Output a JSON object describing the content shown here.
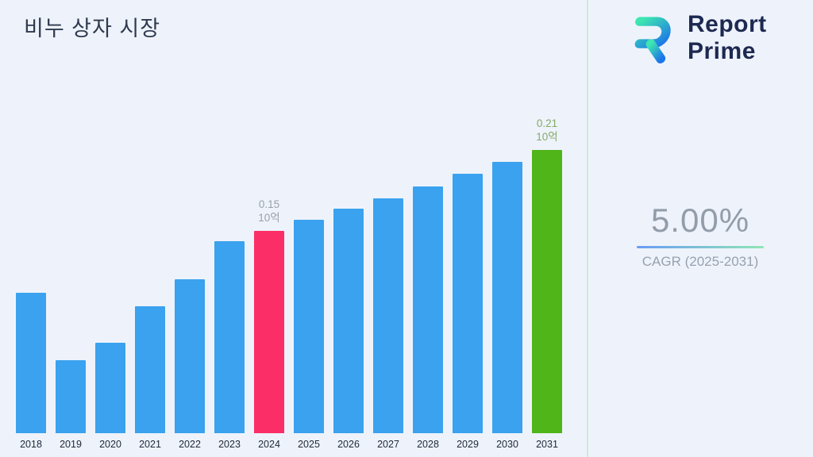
{
  "title": "비누 상자 시장",
  "logo": {
    "line1": "Report",
    "line2": "Prime"
  },
  "stats": {
    "cagr_value": "5.00%",
    "cagr_label": "CAGR (2025-2031)"
  },
  "chart_data": {
    "type": "bar",
    "title": "비누 상자 시장",
    "unit": "10억",
    "categories": [
      "2018",
      "2019",
      "2020",
      "2021",
      "2022",
      "2023",
      "2024",
      "2025",
      "2026",
      "2027",
      "2028",
      "2029",
      "2030",
      "2031"
    ],
    "values": [
      0.104,
      0.054,
      0.067,
      0.094,
      0.114,
      0.142,
      0.15,
      0.158,
      0.166,
      0.174,
      0.183,
      0.192,
      0.201,
      0.21
    ],
    "ylim": [
      0,
      0.235
    ],
    "grid": false,
    "legend": "none",
    "colors": {
      "default": "#3aa2ef",
      "overrides": {
        "2024": "#fb2e67",
        "2031": "#50b519"
      }
    },
    "annotations": [
      {
        "year": "2024",
        "value": "0.15",
        "unit": "10억",
        "color": "#99a1ab"
      },
      {
        "year": "2031",
        "value": "0.21",
        "unit": "10억",
        "color": "#84a968"
      }
    ]
  }
}
